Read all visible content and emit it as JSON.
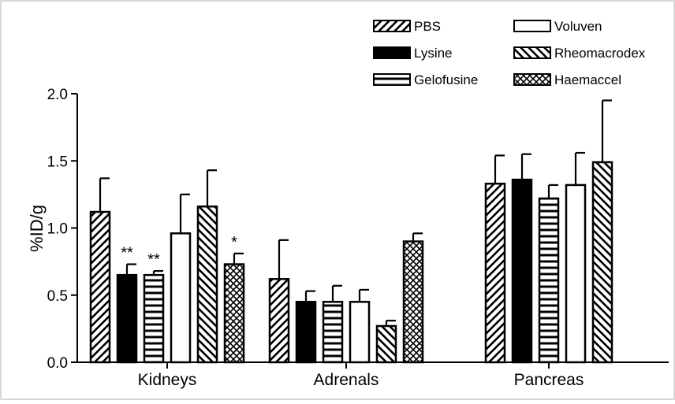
{
  "chart_data": {
    "type": "bar",
    "title": "",
    "xlabel": "",
    "ylabel": "%ID/g",
    "ylim": [
      0,
      2.0
    ],
    "yticks": [
      "0.0",
      "0.5",
      "1.0",
      "1.5",
      "2.0"
    ],
    "grid": false,
    "legend_position": "top-right",
    "categories": [
      "Kidneys",
      "Adrenals",
      "Pancreas"
    ],
    "series": [
      {
        "name": "PBS",
        "pattern": "diag-right",
        "values": [
          1.12,
          0.62,
          1.33
        ],
        "errors": [
          0.25,
          0.29,
          0.21
        ],
        "significance": [
          "",
          "",
          ""
        ]
      },
      {
        "name": "Lysine",
        "pattern": "solid",
        "values": [
          0.65,
          0.45,
          1.36
        ],
        "errors": [
          0.08,
          0.08,
          0.19
        ],
        "significance": [
          "**",
          "",
          ""
        ]
      },
      {
        "name": "Gelofusine",
        "pattern": "horizontal",
        "values": [
          0.65,
          0.45,
          1.22
        ],
        "errors": [
          0.03,
          0.12,
          0.1
        ],
        "significance": [
          "**",
          "",
          ""
        ]
      },
      {
        "name": "Voluven",
        "pattern": "open",
        "values": [
          0.96,
          0.45,
          1.32
        ],
        "errors": [
          0.29,
          0.09,
          0.24
        ],
        "significance": [
          "",
          "",
          ""
        ]
      },
      {
        "name": "Rheomacrodex",
        "pattern": "diag-left",
        "values": [
          1.16,
          0.27,
          1.49
        ],
        "errors": [
          0.27,
          0.04,
          0.46
        ],
        "significance": [
          "",
          "",
          ""
        ]
      },
      {
        "name": "Haemaccel",
        "pattern": "cross",
        "values": [
          0.73,
          0.9,
          null
        ],
        "errors": [
          0.08,
          0.06,
          null
        ],
        "significance": [
          "*",
          "",
          ""
        ]
      }
    ]
  },
  "colors": {
    "ink": "#000000",
    "background": "#ffffff"
  }
}
